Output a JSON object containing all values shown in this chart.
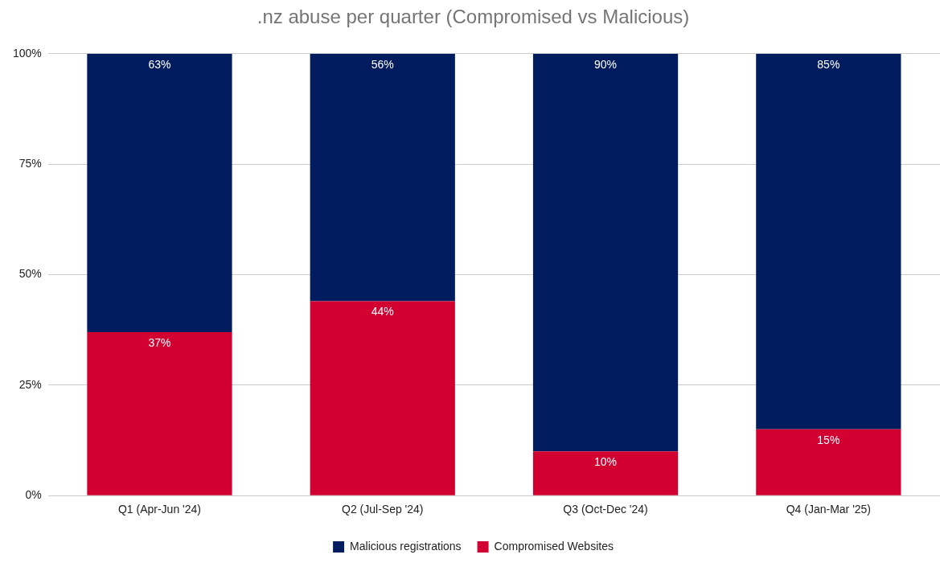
{
  "chart_data": {
    "type": "bar",
    "title": ".nz abuse per quarter (Compromised vs Malicious)",
    "stacked": true,
    "categories": [
      "Q1 (Apr-Jun '24)",
      "Q2 (Jul-Sep '24)",
      "Q3 (Oct-Dec '24)",
      "Q4 (Jan-Mar '25)"
    ],
    "series": [
      {
        "name": "Compromised Websites",
        "color": "#d20030",
        "values": [
          37,
          44,
          10,
          15
        ],
        "value_labels": [
          "37%",
          "44%",
          "10%",
          "15%"
        ]
      },
      {
        "name": "Malicious registrations",
        "color": "#001c5e",
        "values": [
          63,
          56,
          90,
          85
        ],
        "value_labels": [
          "63%",
          "56%",
          "90%",
          "85%"
        ]
      }
    ],
    "ylim": [
      0,
      100
    ],
    "yticks": [
      {
        "value": 0,
        "label": "0%"
      },
      {
        "value": 25,
        "label": "25%"
      },
      {
        "value": 50,
        "label": "50%"
      },
      {
        "value": 75,
        "label": "75%"
      },
      {
        "value": 100,
        "label": "100%"
      }
    ],
    "grid": "y",
    "legend": "bottom"
  }
}
